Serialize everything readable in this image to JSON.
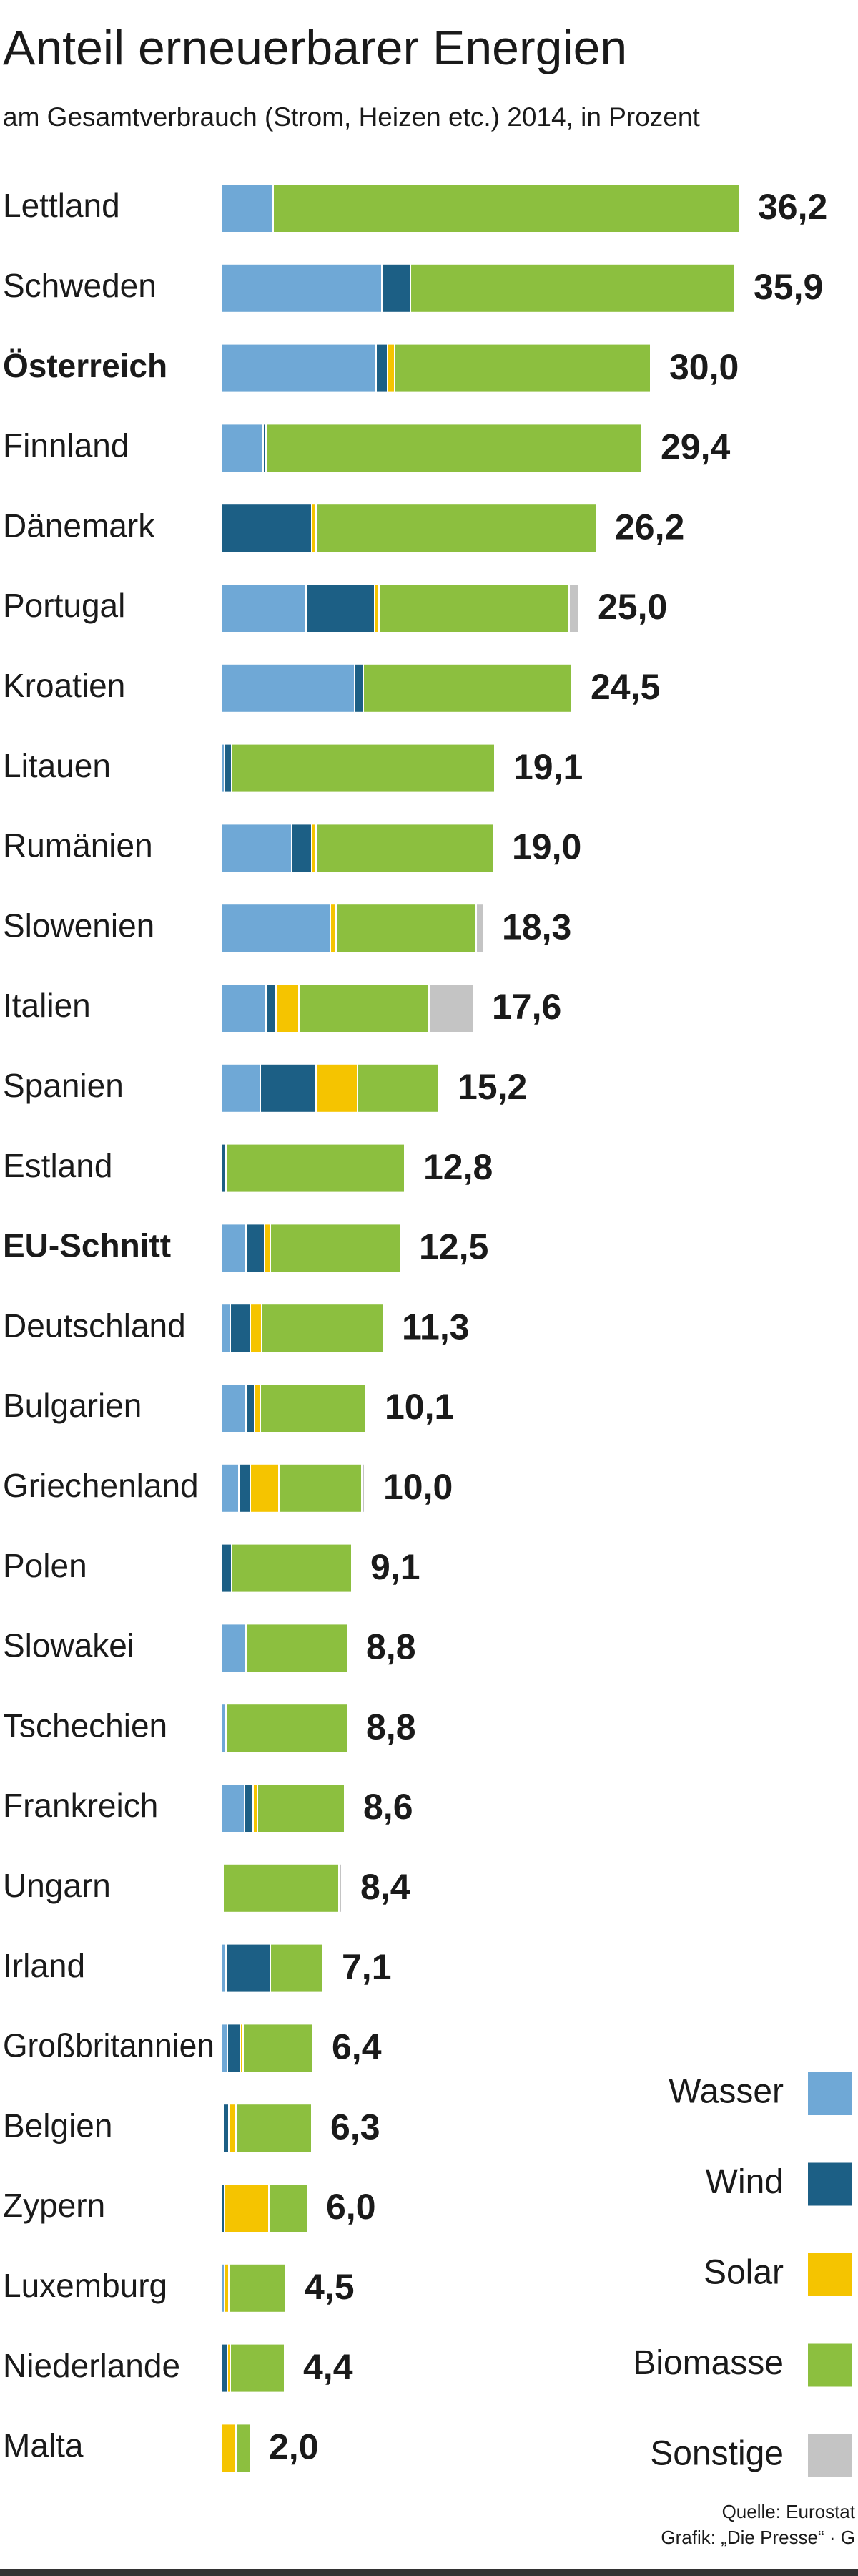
{
  "chart_data": {
    "type": "stacked_bar_horizontal",
    "title": "Anteil erneuerbarer Energien",
    "subtitle": "am Gesamtverbrauch (Strom, Heizen etc.) 2014, in Prozent",
    "categories": [
      "Lettland",
      "Schweden",
      "Österreich",
      "Finnland",
      "Dänemark",
      "Portugal",
      "Kroatien",
      "Litauen",
      "Rumänien",
      "Slowenien",
      "Italien",
      "Spanien",
      "Estland",
      "EU-Schnitt",
      "Deutschland",
      "Bulgarien",
      "Griechenland",
      "Polen",
      "Slowakei",
      "Tschechien",
      "Frankreich",
      "Ungarn",
      "Irland",
      "Großbritannien",
      "Belgien",
      "Zypern",
      "Luxemburg",
      "Niederlande",
      "Malta"
    ],
    "bold_categories": [
      2,
      13
    ],
    "series": [
      {
        "name": "Wasser",
        "color": "#6fa8d6",
        "values": [
          3.6,
          11.2,
          10.8,
          2.9,
          0,
          5.9,
          9.3,
          0.2,
          4.9,
          7.6,
          3.1,
          2.7,
          0,
          1.7,
          0.6,
          1.7,
          1.2,
          0,
          1.7,
          0.3,
          1.6,
          0.1,
          0.3,
          0.4,
          0.1,
          0,
          0.2,
          0,
          0
        ]
      },
      {
        "name": "Wind",
        "color": "#1c5f85",
        "values": [
          0,
          2.0,
          0.8,
          0.2,
          6.3,
          4.8,
          0.6,
          0.5,
          1.4,
          0,
          0.7,
          3.9,
          0.3,
          1.3,
          1.4,
          0.6,
          0.8,
          0.7,
          0,
          0,
          0.6,
          0,
          3.1,
          0.9,
          0.4,
          0.2,
          0,
          0.4,
          0
        ]
      },
      {
        "name": "Solar",
        "color": "#f5c400",
        "values": [
          0,
          0,
          0.5,
          0,
          0.3,
          0.3,
          0,
          0,
          0.3,
          0.4,
          1.6,
          2.9,
          0,
          0.4,
          0.8,
          0.4,
          2.0,
          0,
          0,
          0,
          0.3,
          0,
          0,
          0.2,
          0.5,
          3.1,
          0.3,
          0.2,
          1.0
        ]
      },
      {
        "name": "Biomasse",
        "color": "#8cbf3f",
        "values": [
          32.6,
          22.7,
          17.9,
          26.3,
          19.6,
          13.3,
          14.6,
          18.4,
          12.4,
          9.8,
          9.1,
          5.7,
          12.5,
          9.1,
          8.5,
          7.4,
          5.8,
          8.4,
          7.1,
          8.5,
          6.1,
          8.1,
          3.7,
          4.9,
          5.3,
          2.7,
          4.0,
          3.8,
          1.0
        ]
      },
      {
        "name": "Sonstige",
        "color": "#c4c4c4",
        "values": [
          0,
          0,
          0,
          0,
          0,
          0.7,
          0,
          0,
          0,
          0.5,
          3.1,
          0,
          0,
          0,
          0,
          0,
          0.2,
          0,
          0,
          0,
          0,
          0.2,
          0,
          0,
          0,
          0,
          0,
          0,
          0
        ]
      }
    ],
    "totals": [
      36.2,
      35.9,
      30.0,
      29.4,
      26.2,
      25.0,
      24.5,
      19.1,
      19.0,
      18.3,
      17.6,
      15.2,
      12.8,
      12.5,
      11.3,
      10.1,
      10.0,
      9.1,
      8.8,
      8.8,
      8.6,
      8.4,
      7.1,
      6.4,
      6.3,
      6.0,
      4.5,
      4.4,
      2.0
    ],
    "total_labels": [
      "36,2",
      "35,9",
      "30,0",
      "29,4",
      "26,2",
      "25,0",
      "24,5",
      "19,1",
      "19,0",
      "18,3",
      "17,6",
      "15,2",
      "12,8",
      "12,5",
      "11,3",
      "10,1",
      "10,0",
      "9,1",
      "8,8",
      "8,8",
      "8,6",
      "8,4",
      "7,1",
      "6,4",
      "6,3",
      "6,0",
      "4,5",
      "4,4",
      "2,0"
    ],
    "legend": "bottom-right",
    "source": [
      "Quelle: Eurostat",
      "Grafik: „Die Presse“ · G"
    ]
  }
}
